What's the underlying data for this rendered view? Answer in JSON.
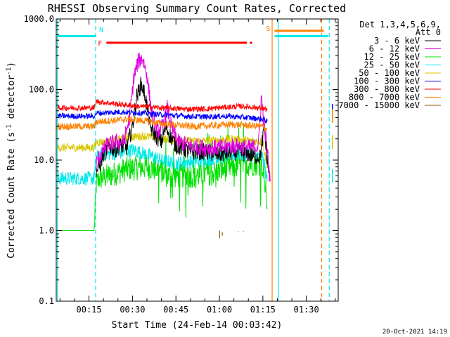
{
  "chart_data": {
    "type": "line",
    "title": "RHESSI Observing Summary Count Rates, Corrected",
    "xlabel": "Start Time (24-Feb-14 00:03:42)",
    "ylabel_parts": [
      "Corrected Count Rate (s",
      "-1",
      " detector",
      "-1",
      ")"
    ],
    "yscale": "log",
    "ylim": [
      0.1,
      1000
    ],
    "xlim_minutes": [
      3.7,
      101
    ],
    "x_ticks": [
      {
        "m": 15,
        "label": "00:15"
      },
      {
        "m": 30,
        "label": "00:30"
      },
      {
        "m": 45,
        "label": "00:45"
      },
      {
        "m": 60,
        "label": "01:00"
      },
      {
        "m": 75,
        "label": "01:15"
      },
      {
        "m": 90,
        "label": "01:30"
      }
    ],
    "y_ticks": [
      {
        "v": 0.1,
        "label": "0.1"
      },
      {
        "v": 1,
        "label": "1.0"
      },
      {
        "v": 10,
        "label": "10.0"
      },
      {
        "v": 100,
        "label": "100.0"
      },
      {
        "v": 1000,
        "label": "1000.0"
      }
    ],
    "legend": {
      "placement": "right",
      "header_lines": [
        "Det 1,3,4,5,6,9,",
        "Att 0"
      ],
      "entries": [
        {
          "name": "3 - 6 keV",
          "color": "#000000"
        },
        {
          "name": "6 - 12 keV",
          "color": "#e000e0"
        },
        {
          "name": "12 - 25 keV",
          "color": "#00e000"
        },
        {
          "name": "25 - 50 keV",
          "color": "#00e8e8"
        },
        {
          "name": "50 - 100 keV",
          "color": "#d8c800"
        },
        {
          "name": "100 - 300 keV",
          "color": "#0000ff"
        },
        {
          "name": "300 - 800 keV",
          "color": "#ff0000"
        },
        {
          "name": "800 - 7000 keV",
          "color": "#ff8000"
        },
        {
          "name": "7000 - 15000 keV",
          "color": "#806000"
        }
      ]
    },
    "series": [
      {
        "name": "3 - 6 keV",
        "color": "#000000",
        "noise": 0.12,
        "points": [
          [
            17.5,
            7
          ],
          [
            18.5,
            8
          ],
          [
            20,
            12
          ],
          [
            22,
            16
          ],
          [
            24,
            14
          ],
          [
            26,
            16
          ],
          [
            28,
            15
          ],
          [
            30,
            30
          ],
          [
            31.5,
            80
          ],
          [
            33,
            120
          ],
          [
            34.5,
            80
          ],
          [
            36,
            30
          ],
          [
            38,
            22
          ],
          [
            40,
            18
          ],
          [
            41.5,
            30
          ],
          [
            43,
            22
          ],
          [
            45,
            16
          ],
          [
            50,
            13
          ],
          [
            55,
            13
          ],
          [
            60,
            12
          ],
          [
            65,
            13
          ],
          [
            70,
            12
          ],
          [
            74,
            11
          ],
          [
            75.5,
            28
          ],
          [
            76.5,
            10
          ],
          [
            77.5,
            5
          ]
        ]
      },
      {
        "name": "6 - 12 keV",
        "color": "#e000e0",
        "noise": 0.12,
        "points": [
          [
            17.5,
            9
          ],
          [
            19,
            12
          ],
          [
            21,
            16
          ],
          [
            24,
            18
          ],
          [
            27,
            18
          ],
          [
            29,
            40
          ],
          [
            30.5,
            150
          ],
          [
            32,
            250
          ],
          [
            33.5,
            280
          ],
          [
            35,
            160
          ],
          [
            36.5,
            50
          ],
          [
            38.5,
            25
          ],
          [
            40.5,
            30
          ],
          [
            42,
            55
          ],
          [
            43.5,
            28
          ],
          [
            46,
            18
          ],
          [
            50,
            16
          ],
          [
            55,
            15
          ],
          [
            60,
            15
          ],
          [
            65,
            16
          ],
          [
            70,
            15
          ],
          [
            73.5,
            16
          ],
          [
            74.5,
            80
          ],
          [
            75.5,
            30
          ],
          [
            76.5,
            14
          ],
          [
            77.5,
            5
          ]
        ]
      },
      {
        "name": "12 - 25 keV",
        "color": "#00e000",
        "noise": 0.18,
        "points": [
          [
            4,
            1
          ],
          [
            16.8,
            1
          ],
          [
            17.5,
            4.5
          ],
          [
            18.5,
            5.5
          ],
          [
            22,
            6
          ],
          [
            28,
            7.5
          ],
          [
            35,
            8
          ],
          [
            40,
            7
          ],
          [
            42,
            6
          ],
          [
            47,
            6
          ],
          [
            52,
            6
          ],
          [
            57,
            6.5
          ],
          [
            62,
            7.5
          ],
          [
            67,
            8.5
          ],
          [
            72,
            9
          ],
          [
            74.5,
            9
          ],
          [
            75.5,
            7
          ],
          [
            76.5,
            2
          ]
        ]
      },
      {
        "name": "25 - 50 keV",
        "color": "#00e8e8",
        "noise": 0.1,
        "points": [
          [
            4,
            5.5
          ],
          [
            16.8,
            5.5
          ],
          [
            17.5,
            11
          ],
          [
            20,
            12
          ],
          [
            25,
            12.5
          ],
          [
            30,
            14
          ],
          [
            35,
            12
          ],
          [
            40,
            10
          ],
          [
            45,
            9
          ],
          [
            50,
            9.5
          ],
          [
            55,
            10
          ],
          [
            60,
            11
          ],
          [
            65,
            12
          ],
          [
            70,
            12
          ],
          [
            75,
            11
          ],
          [
            76.5,
            5
          ]
        ]
      },
      {
        "name": "50 - 100 keV",
        "color": "#d8c800",
        "noise": 0.06,
        "points": [
          [
            4,
            15
          ],
          [
            16.8,
            15
          ],
          [
            17.5,
            18
          ],
          [
            22,
            18
          ],
          [
            28,
            21
          ],
          [
            34,
            22
          ],
          [
            40,
            20
          ],
          [
            46,
            19
          ],
          [
            52,
            18.5
          ],
          [
            58,
            19
          ],
          [
            64,
            20
          ],
          [
            70,
            19
          ],
          [
            75,
            18
          ],
          [
            76.5,
            8
          ]
        ]
      },
      {
        "name": "100 - 300 keV",
        "color": "#0000ff",
        "noise": 0.04,
        "points": [
          [
            4,
            42
          ],
          [
            16.8,
            42
          ],
          [
            17.5,
            46
          ],
          [
            25,
            48
          ],
          [
            32,
            47
          ],
          [
            40,
            44
          ],
          [
            48,
            42
          ],
          [
            55,
            41
          ],
          [
            62,
            42
          ],
          [
            70,
            40
          ],
          [
            75,
            38
          ],
          [
            76.5,
            36
          ]
        ]
      },
      {
        "name": "300 - 800 keV",
        "color": "#ff0000",
        "noise": 0.04,
        "points": [
          [
            4,
            55
          ],
          [
            16.8,
            55
          ],
          [
            17.5,
            68
          ],
          [
            25,
            62
          ],
          [
            32,
            58
          ],
          [
            40,
            55
          ],
          [
            48,
            53
          ],
          [
            55,
            53
          ],
          [
            62,
            56
          ],
          [
            68,
            58
          ],
          [
            72,
            56
          ],
          [
            75,
            54
          ],
          [
            76.5,
            52
          ]
        ]
      },
      {
        "name": "800 - 7000 keV",
        "color": "#ff8000",
        "noise": 0.05,
        "points": [
          [
            4,
            30
          ],
          [
            16.8,
            30
          ],
          [
            17.5,
            35
          ],
          [
            22,
            36
          ],
          [
            28,
            38
          ],
          [
            34,
            36
          ],
          [
            40,
            33
          ],
          [
            46,
            31
          ],
          [
            52,
            30
          ],
          [
            58,
            31
          ],
          [
            64,
            32
          ],
          [
            70,
            31
          ],
          [
            75,
            30
          ],
          [
            76.5,
            27
          ]
        ]
      }
    ],
    "series_7000_15000_segments": [
      [
        60.1,
        0.78,
        1.0
      ],
      [
        61.0,
        0.85,
        0.95
      ],
      [
        66.5,
        0.96,
        0.98
      ],
      [
        68.3,
        0.96,
        0.98
      ]
    ],
    "flags": [
      {
        "label": "N",
        "color": "#00e8e8",
        "segments": [
          [
            4,
            17.3
          ],
          [
            79,
            97.5
          ]
        ],
        "value": 570
      },
      {
        "label": "F",
        "color": "#ff0000",
        "segments": [
          [
            21,
            69.5
          ],
          [
            70.5,
            71.3
          ]
        ],
        "value": 460
      },
      {
        "label": "S",
        "color": "#ff8000",
        "segments": [
          [
            79,
            96
          ]
        ],
        "value": 680
      }
    ],
    "vertical_lines": [
      {
        "m": 4.1,
        "color": "#00e8e8",
        "style": "solid"
      },
      {
        "m": 17.3,
        "color": "#00e8e8",
        "style": "dashed"
      },
      {
        "m": 78.2,
        "color": "#ff8000",
        "style": "solid"
      },
      {
        "m": 80.3,
        "color": "#00e8e8",
        "style": "solid"
      },
      {
        "m": 95.3,
        "color": "#ff8000",
        "style": "dashed"
      },
      {
        "m": 97.9,
        "color": "#00e8e8",
        "style": "dashed"
      }
    ],
    "post_eclipse_blips": [
      {
        "m": 99,
        "v": 50,
        "color": "#0000ff"
      },
      {
        "m": 99,
        "v": 42,
        "color": "#ff8000"
      },
      {
        "m": 99,
        "v": 18,
        "color": "#d8c800"
      },
      {
        "m": 99,
        "v": 6,
        "color": "#00e8e8"
      }
    ]
  },
  "footer": {
    "timestamp": "20-Oct-2021 14:19"
  }
}
